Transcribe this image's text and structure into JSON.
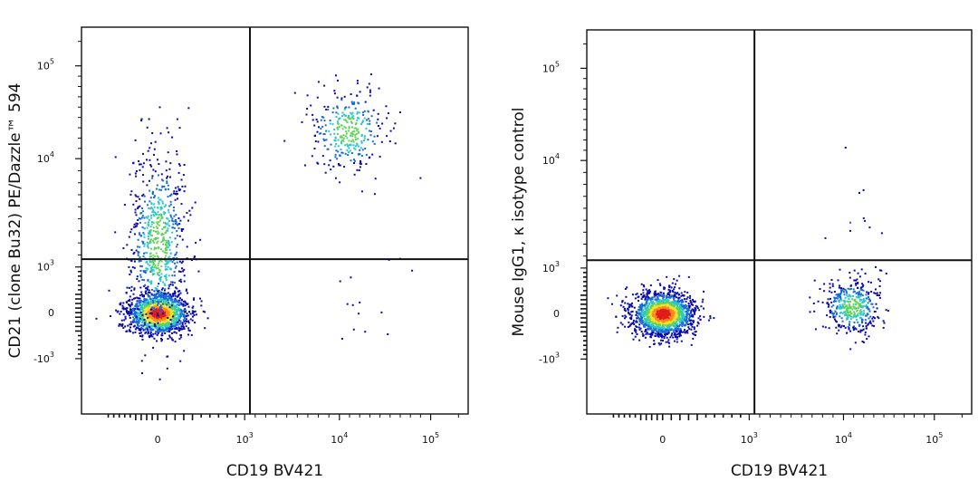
{
  "chart_data": [
    {
      "type": "scatter",
      "title": "",
      "xlabel": "CD19 BV421",
      "ylabel": "CD21 (clone Bu32) PE/Dazzle™ 594",
      "x_scale": "biexponential",
      "y_scale": "biexponential",
      "xlim": [
        -1000,
        200000
      ],
      "ylim": [
        -10000,
        250000
      ],
      "x_ticks": [
        {
          "value": 0,
          "label": "0"
        },
        {
          "value": 1000,
          "label": "10",
          "exp": "3"
        },
        {
          "value": 10000,
          "label": "10",
          "exp": "4"
        },
        {
          "value": 100000,
          "label": "10",
          "exp": "5"
        }
      ],
      "y_ticks": [
        {
          "value": 100000,
          "label": "10",
          "exp": "5"
        },
        {
          "value": 10000,
          "label": "10",
          "exp": "4"
        },
        {
          "value": 1000,
          "label": "10",
          "exp": "3"
        },
        {
          "value": 0,
          "label": "0"
        },
        {
          "value": -1000,
          "label": "-10",
          "exp": "3"
        }
      ],
      "quadrant_gate": {
        "x": 1500,
        "y": 1650
      },
      "populations": [
        {
          "name": "",
          "center": [
            0,
            0
          ],
          "density": "high",
          "events": 1400
        },
        {
          "name": "",
          "center": [
            0,
            3000
          ],
          "density": "medium",
          "events": 700
        },
        {
          "name": "",
          "center": [
            18000,
            38000
          ],
          "density": "medium",
          "events": 320
        },
        {
          "name": "",
          "center": [
            40000,
            150
          ],
          "density": "low",
          "events": 14
        }
      ],
      "color_scale": [
        "#0a0aa8",
        "#1a6bd6",
        "#2cc7c7",
        "#5fd35a",
        "#f2e22a",
        "#ff8a1c",
        "#e21b1b"
      ]
    },
    {
      "type": "scatter",
      "title": "",
      "xlabel": "CD19 BV421",
      "ylabel": "Mouse IgG1, κ isotype control",
      "x_scale": "biexponential",
      "y_scale": "biexponential",
      "xlim": [
        -1000,
        200000
      ],
      "ylim": [
        -10000,
        250000
      ],
      "x_ticks": [
        {
          "value": 0,
          "label": "0"
        },
        {
          "value": 1000,
          "label": "10",
          "exp": "3"
        },
        {
          "value": 10000,
          "label": "10",
          "exp": "4"
        },
        {
          "value": 100000,
          "label": "10",
          "exp": "5"
        }
      ],
      "y_ticks": [
        {
          "value": 100000,
          "label": "10",
          "exp": "5"
        },
        {
          "value": 10000,
          "label": "10",
          "exp": "4"
        },
        {
          "value": 1000,
          "label": "10",
          "exp": "3"
        },
        {
          "value": 0,
          "label": "0"
        },
        {
          "value": -1000,
          "label": "-10",
          "exp": "3"
        }
      ],
      "quadrant_gate": {
        "x": 1500,
        "y": 1650
      },
      "populations": [
        {
          "name": "",
          "center": [
            0,
            0
          ],
          "density": "high",
          "events": 1700
        },
        {
          "name": "",
          "center": [
            18000,
            150
          ],
          "density": "medium",
          "events": 420
        },
        {
          "name": "",
          "center": [
            18000,
            5000
          ],
          "density": "low",
          "events": 10
        }
      ],
      "color_scale": [
        "#0a0aa8",
        "#1a6bd6",
        "#2cc7c7",
        "#5fd35a",
        "#f2e22a",
        "#ff8a1c",
        "#e21b1b"
      ]
    }
  ]
}
